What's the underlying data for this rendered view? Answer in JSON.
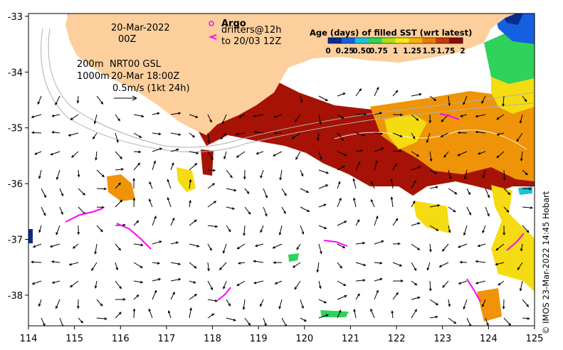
{
  "map": {
    "date_label": "20-Mar-2022",
    "time_label": "00Z",
    "contour_200m": "200m",
    "contour_1000m": "1000m",
    "current_source": "NRT00 GSL",
    "current_time": "20-Mar 18:00Z",
    "vector_scale": "0.5m/s (1kt 24h)",
    "argo_label": "Argo",
    "drifters_label": "drifters@12h",
    "drifters_range": "to 20/03 12Z",
    "x_ticks": [
      "114",
      "115",
      "116",
      "117",
      "118",
      "119",
      "120",
      "121",
      "122",
      "123",
      "124",
      "125"
    ],
    "y_ticks": [
      "-33",
      "-34",
      "-35",
      "-36",
      "-37",
      "-38"
    ],
    "x_range": [
      114,
      125
    ],
    "y_range": [
      -38.55,
      -32.95
    ],
    "credit": "© IMOS 23-Mar-2022 14:45 Hobart"
  },
  "colorbar": {
    "title": "Age (days) of filled SST (wrt latest)",
    "tick_labels": [
      "0",
      "0.25",
      "0.50",
      "0.75",
      "1",
      "1.25",
      "1.5",
      "1.75",
      "2"
    ],
    "colors": [
      "#0b2a8c",
      "#1560e0",
      "#1fbfd8",
      "#2fd25a",
      "#a6e01f",
      "#f2ea1a",
      "#f5b20e",
      "#ea7a0a",
      "#c43a08",
      "#8c0a06"
    ]
  },
  "colors": {
    "land": "#fccf9c",
    "age_old": "#a61205",
    "age_mid": "#ef9408",
    "age_young": "#f5dc12",
    "drifter": "#ff00ff"
  }
}
